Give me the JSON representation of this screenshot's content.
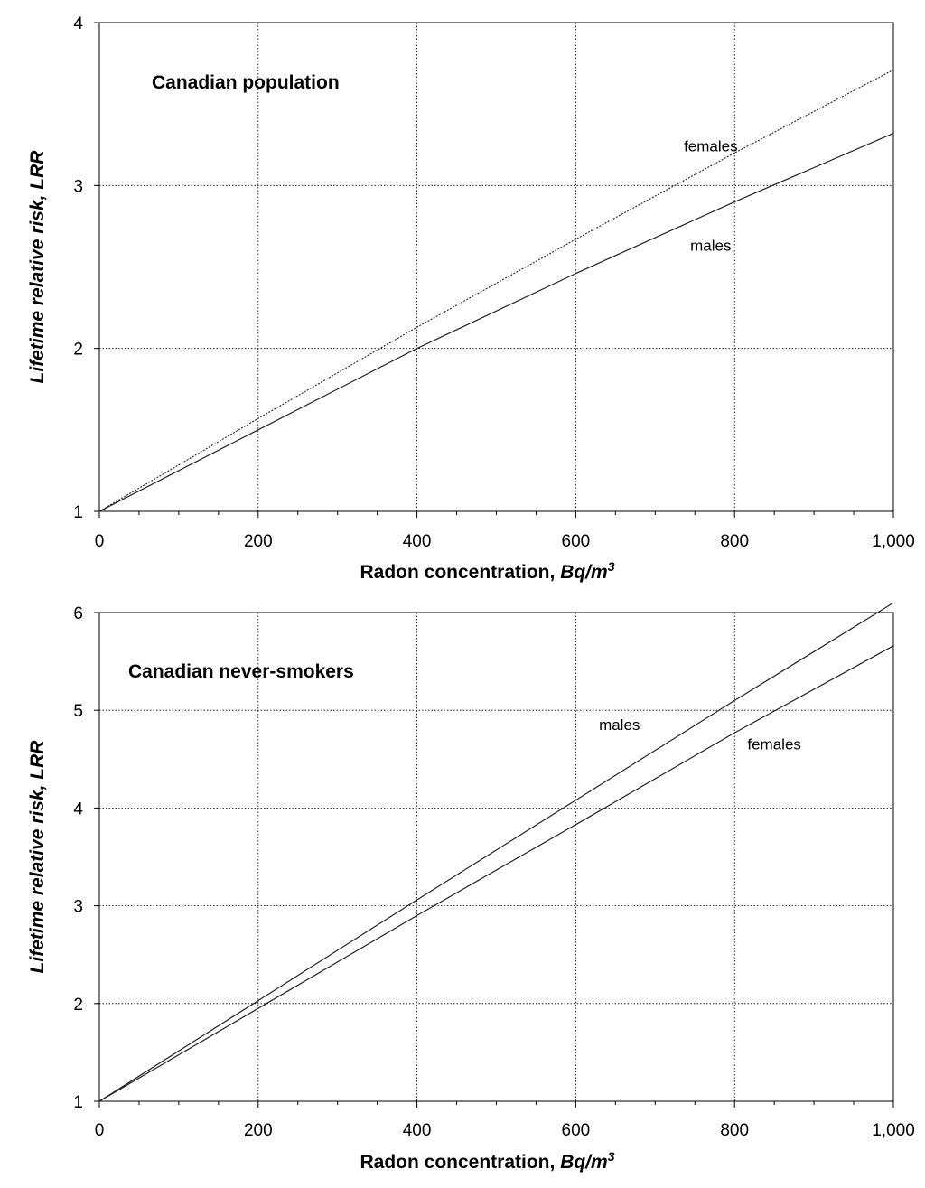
{
  "chart_data": [
    {
      "type": "line",
      "title": "Canadian population",
      "xlabel": {
        "text": "Radon concentration, ",
        "unit": "Bq/m",
        "sup": "3"
      },
      "ylabel": {
        "text": "Lifetime relative risk, ",
        "abbr": "LRR"
      },
      "xlim": [
        0,
        1000
      ],
      "ylim": [
        1,
        4
      ],
      "xticks": [
        0,
        200,
        400,
        600,
        800,
        1000
      ],
      "xtick_labels": [
        "0",
        "200",
        "400",
        "600",
        "800",
        "1,000"
      ],
      "yticks": [
        1,
        2,
        3,
        4
      ],
      "ytick_labels": [
        "1",
        "2",
        "3",
        "4"
      ],
      "grid": true,
      "series": [
        {
          "name": "females",
          "style": "dotted",
          "x": [
            0,
            200,
            400,
            600,
            800,
            1000
          ],
          "y": [
            1.0,
            1.57,
            2.13,
            2.67,
            3.2,
            3.71
          ]
        },
        {
          "name": "males",
          "style": "solid",
          "x": [
            0,
            200,
            400,
            600,
            800,
            1000
          ],
          "y": [
            1.0,
            1.5,
            2.0,
            2.46,
            2.9,
            3.32
          ]
        }
      ],
      "annotations": [
        {
          "text": "females",
          "x": 770,
          "y": 3.21
        },
        {
          "text": "males",
          "x": 770,
          "y": 2.6
        }
      ]
    },
    {
      "type": "line",
      "title": "Canadian never-smokers",
      "xlabel": {
        "text": "Radon concentration, ",
        "unit": "Bq/m",
        "sup": "3"
      },
      "ylabel": {
        "text": "Lifetime relative risk, ",
        "abbr": "LRR"
      },
      "xlim": [
        0,
        1000
      ],
      "ylim": [
        1,
        6
      ],
      "xticks": [
        0,
        200,
        400,
        600,
        800,
        1000
      ],
      "xtick_labels": [
        "0",
        "200",
        "400",
        "600",
        "800",
        "1,000"
      ],
      "yticks": [
        1,
        2,
        3,
        4,
        5,
        6
      ],
      "ytick_labels": [
        "1",
        "2",
        "3",
        "4",
        "5",
        "6"
      ],
      "grid": true,
      "series": [
        {
          "name": "males",
          "style": "solid",
          "x": [
            0,
            200,
            400,
            600,
            800,
            1000
          ],
          "y": [
            1.0,
            2.03,
            3.06,
            4.08,
            5.1,
            6.1
          ]
        },
        {
          "name": "females",
          "style": "solid",
          "x": [
            0,
            200,
            400,
            600,
            800,
            1000
          ],
          "y": [
            1.0,
            1.95,
            2.9,
            3.83,
            4.77,
            5.66
          ]
        }
      ],
      "annotations": [
        {
          "text": "males",
          "x": 655,
          "y": 4.8
        },
        {
          "text": "females",
          "x": 850,
          "y": 4.6
        }
      ]
    }
  ]
}
